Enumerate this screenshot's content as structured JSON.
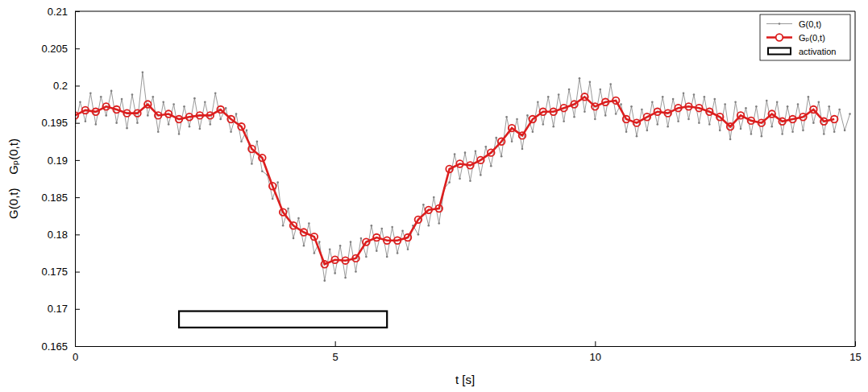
{
  "chart_data": {
    "type": "line",
    "xlabel": "t [s]",
    "ylabel": "G(0,t)    Gₚ(0,t)",
    "xlim": [
      0,
      15
    ],
    "xticks": [
      0,
      5,
      10,
      15
    ],
    "ylim": [
      0.165,
      0.21
    ],
    "yticks": [
      0.165,
      0.17,
      0.175,
      0.18,
      0.185,
      0.19,
      0.195,
      0.2,
      0.205,
      0.21
    ],
    "grid": false,
    "legend": "upper right",
    "series": [
      {
        "name": "G(0,t)",
        "color": "#7f7f7f",
        "marker": "point",
        "line_style": "solid",
        "x": [
          0,
          0.1,
          0.2,
          0.3,
          0.4,
          0.5,
          0.6,
          0.7,
          0.8,
          0.9,
          1,
          1.1,
          1.2,
          1.3,
          1.4,
          1.5,
          1.6,
          1.7,
          1.8,
          1.9,
          2,
          2.1,
          2.2,
          2.3,
          2.4,
          2.5,
          2.6,
          2.7,
          2.8,
          2.9,
          3,
          3.1,
          3.2,
          3.3,
          3.4,
          3.5,
          3.6,
          3.7,
          3.8,
          3.9,
          4,
          4.1,
          4.2,
          4.3,
          4.4,
          4.5,
          4.6,
          4.7,
          4.8,
          4.9,
          5,
          5.1,
          5.2,
          5.3,
          5.4,
          5.5,
          5.6,
          5.7,
          5.8,
          5.9,
          6,
          6.1,
          6.2,
          6.3,
          6.4,
          6.5,
          6.6,
          6.7,
          6.8,
          6.9,
          7,
          7.1,
          7.2,
          7.3,
          7.4,
          7.5,
          7.6,
          7.7,
          7.8,
          7.9,
          8,
          8.1,
          8.2,
          8.3,
          8.4,
          8.5,
          8.6,
          8.7,
          8.8,
          8.9,
          9,
          9.1,
          9.2,
          9.3,
          9.4,
          9.5,
          9.6,
          9.7,
          9.8,
          9.9,
          10,
          10.1,
          10.2,
          10.3,
          10.4,
          10.5,
          10.6,
          10.7,
          10.8,
          10.9,
          11,
          11.1,
          11.2,
          11.3,
          11.4,
          11.5,
          11.6,
          11.7,
          11.8,
          11.9,
          12,
          12.1,
          12.2,
          12.3,
          12.4,
          12.5,
          12.6,
          12.7,
          12.8,
          12.9,
          13,
          13.1,
          13.2,
          13.3,
          13.4,
          13.5,
          13.6,
          13.7,
          13.8,
          13.9,
          14,
          14.1,
          14.2,
          14.3,
          14.4,
          14.5,
          14.6,
          14.7,
          14.8,
          14.9
        ],
        "values": [
          0.1945,
          0.1978,
          0.1952,
          0.199,
          0.1948,
          0.1985,
          0.196,
          0.1993,
          0.195,
          0.1982,
          0.1943,
          0.1988,
          0.195,
          0.2018,
          0.196,
          0.1985,
          0.1938,
          0.1978,
          0.1948,
          0.1975,
          0.1935,
          0.1972,
          0.1945,
          0.1983,
          0.1942,
          0.1978,
          0.1948,
          0.199,
          0.1955,
          0.197,
          0.1938,
          0.1962,
          0.1925,
          0.194,
          0.1895,
          0.1925,
          0.1885,
          0.188,
          0.1848,
          0.187,
          0.1812,
          0.1835,
          0.1795,
          0.1822,
          0.1785,
          0.1815,
          0.1775,
          0.179,
          0.1738,
          0.178,
          0.1748,
          0.1785,
          0.1742,
          0.179,
          0.175,
          0.1795,
          0.177,
          0.1812,
          0.1778,
          0.1808,
          0.177,
          0.181,
          0.1775,
          0.1805,
          0.178,
          0.1812,
          0.18,
          0.184,
          0.1812,
          0.185,
          0.1815,
          0.1862,
          0.187,
          0.1908,
          0.1875,
          0.191,
          0.1872,
          0.1912,
          0.188,
          0.1918,
          0.1892,
          0.193,
          0.1905,
          0.1958,
          0.1925,
          0.1955,
          0.1915,
          0.196,
          0.1938,
          0.1978,
          0.1948,
          0.1985,
          0.1945,
          0.1988,
          0.1952,
          0.1995,
          0.1958,
          0.201,
          0.1965,
          0.2005,
          0.1955,
          0.1995,
          0.196,
          0.2002,
          0.1962,
          0.1975,
          0.1938,
          0.1972,
          0.1932,
          0.1968,
          0.194,
          0.1978,
          0.1948,
          0.1985,
          0.1945,
          0.1982,
          0.1952,
          0.199,
          0.1955,
          0.1988,
          0.195,
          0.1985,
          0.1948,
          0.1982,
          0.194,
          0.1975,
          0.1928,
          0.1978,
          0.1942,
          0.197,
          0.1935,
          0.1972,
          0.1932,
          0.198,
          0.1945,
          0.1978,
          0.1935,
          0.1972,
          0.1938,
          0.1975,
          0.194,
          0.1985,
          0.195,
          0.1978,
          0.1935,
          0.1972,
          0.1938,
          0.1968,
          0.194,
          0.1962
        ]
      },
      {
        "name": "Gₚ(0,t)",
        "color": "#dc1e1e",
        "marker": "circle",
        "line_style": "solid",
        "x": [
          0,
          0.2,
          0.4,
          0.6,
          0.8,
          1,
          1.2,
          1.4,
          1.6,
          1.8,
          2,
          2.2,
          2.4,
          2.6,
          2.8,
          3,
          3.2,
          3.4,
          3.6,
          3.8,
          4,
          4.2,
          4.4,
          4.6,
          4.8,
          5,
          5.2,
          5.4,
          5.6,
          5.8,
          6,
          6.2,
          6.4,
          6.6,
          6.8,
          7,
          7.2,
          7.4,
          7.6,
          7.8,
          8,
          8.2,
          8.4,
          8.6,
          8.8,
          9,
          9.2,
          9.4,
          9.6,
          9.8,
          10,
          10.2,
          10.4,
          10.6,
          10.8,
          11,
          11.2,
          11.4,
          11.6,
          11.8,
          12,
          12.2,
          12.4,
          12.6,
          12.8,
          13,
          13.2,
          13.4,
          13.6,
          13.8,
          14,
          14.2,
          14.4,
          14.6
        ],
        "values": [
          0.196,
          0.1967,
          0.1965,
          0.1972,
          0.1968,
          0.1963,
          0.1963,
          0.1975,
          0.196,
          0.1962,
          0.1955,
          0.1958,
          0.196,
          0.196,
          0.1968,
          0.1955,
          0.1945,
          0.1915,
          0.1903,
          0.1865,
          0.183,
          0.1812,
          0.1803,
          0.1797,
          0.176,
          0.1766,
          0.1765,
          0.1768,
          0.179,
          0.1796,
          0.1792,
          0.1792,
          0.1796,
          0.182,
          0.1833,
          0.1835,
          0.1888,
          0.1895,
          0.1893,
          0.19,
          0.191,
          0.1925,
          0.1943,
          0.1933,
          0.1955,
          0.1965,
          0.1965,
          0.197,
          0.1975,
          0.1985,
          0.1972,
          0.1978,
          0.198,
          0.1955,
          0.195,
          0.1958,
          0.1965,
          0.1963,
          0.197,
          0.1972,
          0.197,
          0.1965,
          0.1958,
          0.1945,
          0.196,
          0.1953,
          0.195,
          0.1962,
          0.1952,
          0.1955,
          0.1958,
          0.1968,
          0.1952,
          0.1955
        ]
      },
      {
        "name": "activation",
        "type": "span",
        "color": "#000000",
        "x": [
          2,
          6
        ],
        "values": [
          0.1675,
          0.1697
        ]
      }
    ]
  }
}
